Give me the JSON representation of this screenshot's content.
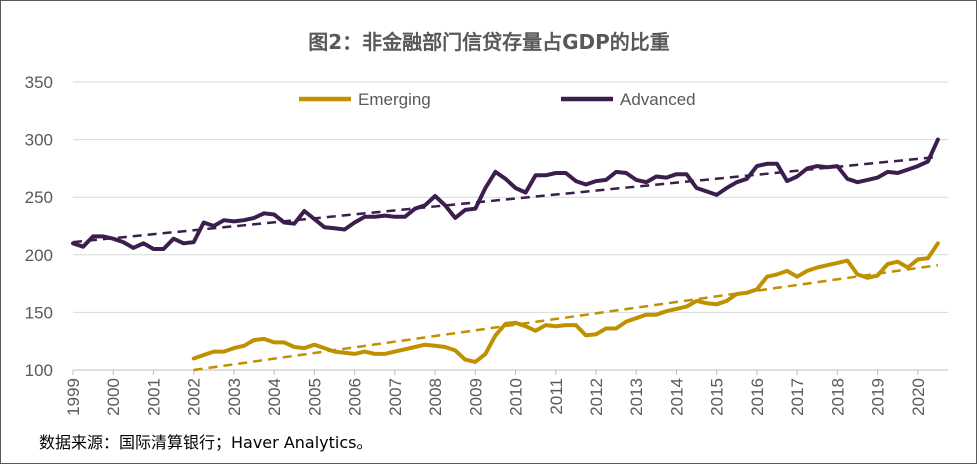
{
  "chart_data": {
    "type": "line",
    "title": "图2：非金融部门信贷存量占GDP的比重",
    "source": "数据来源：国际清算银行；Haver Analytics。",
    "xlabel": "",
    "ylabel": "",
    "xlim": [
      1999,
      2020.75
    ],
    "ylim": [
      100,
      350
    ],
    "yticks": [
      100,
      150,
      200,
      250,
      300,
      350
    ],
    "xticks": [
      "1999",
      "2000",
      "2001",
      "2002",
      "2003",
      "2004",
      "2005",
      "2006",
      "2007",
      "2008",
      "2009",
      "2010",
      "2011",
      "2012",
      "2013",
      "2014",
      "2015",
      "2016",
      "2017",
      "2018",
      "2019",
      "2020"
    ],
    "grid": true,
    "legend": "top-center",
    "series": [
      {
        "name": "Emerging",
        "color": "#BF9000",
        "x": [
          2002.0,
          2002.25,
          2002.5,
          2002.75,
          2003.0,
          2003.25,
          2003.5,
          2003.75,
          2004.0,
          2004.25,
          2004.5,
          2004.75,
          2005.0,
          2005.25,
          2005.5,
          2005.75,
          2006.0,
          2006.25,
          2006.5,
          2006.75,
          2007.0,
          2007.25,
          2007.5,
          2007.75,
          2008.0,
          2008.25,
          2008.5,
          2008.75,
          2009.0,
          2009.25,
          2009.5,
          2009.75,
          2010.0,
          2010.25,
          2010.5,
          2010.75,
          2011.0,
          2011.25,
          2011.5,
          2011.75,
          2012.0,
          2012.25,
          2012.5,
          2012.75,
          2013.0,
          2013.25,
          2013.5,
          2013.75,
          2014.0,
          2014.25,
          2014.5,
          2014.75,
          2015.0,
          2015.25,
          2015.5,
          2015.75,
          2016.0,
          2016.25,
          2016.5,
          2016.75,
          2017.0,
          2017.25,
          2017.5,
          2017.75,
          2018.0,
          2018.25,
          2018.5,
          2018.75,
          2019.0,
          2019.25,
          2019.5,
          2019.75,
          2020.0,
          2020.25,
          2020.5
        ],
        "values": [
          110,
          113,
          116,
          116,
          119,
          121,
          126,
          127,
          124,
          124,
          120,
          119,
          122,
          119,
          116,
          115,
          114,
          116,
          114,
          114,
          116,
          118,
          120,
          122,
          121,
          120,
          117,
          109,
          107,
          114,
          130,
          140,
          141,
          138,
          134,
          139,
          138,
          139,
          139,
          130,
          131,
          136,
          136,
          142,
          145,
          148,
          148,
          151,
          153,
          155,
          160,
          158,
          157,
          160,
          166,
          167,
          170,
          181,
          183,
          186,
          181,
          186,
          189,
          191,
          193,
          195,
          183,
          180,
          182,
          192,
          194,
          189,
          196,
          197,
          210
        ],
        "trend": [
          [
            2002.0,
            100
          ],
          [
            2020.5,
            191
          ]
        ]
      },
      {
        "name": "Advanced",
        "color": "#3B1D4E",
        "x": [
          1999.0,
          1999.25,
          1999.5,
          1999.75,
          2000.0,
          2000.25,
          2000.5,
          2000.75,
          2001.0,
          2001.25,
          2001.5,
          2001.75,
          2002.0,
          2002.25,
          2002.5,
          2002.75,
          2003.0,
          2003.25,
          2003.5,
          2003.75,
          2004.0,
          2004.25,
          2004.5,
          2004.75,
          2005.0,
          2005.25,
          2005.5,
          2005.75,
          2006.0,
          2006.25,
          2006.5,
          2006.75,
          2007.0,
          2007.25,
          2007.5,
          2007.75,
          2008.0,
          2008.25,
          2008.5,
          2008.75,
          2009.0,
          2009.25,
          2009.5,
          2009.75,
          2010.0,
          2010.25,
          2010.5,
          2010.75,
          2011.0,
          2011.25,
          2011.5,
          2011.75,
          2012.0,
          2012.25,
          2012.5,
          2012.75,
          2013.0,
          2013.25,
          2013.5,
          2013.75,
          2014.0,
          2014.25,
          2014.5,
          2014.75,
          2015.0,
          2015.25,
          2015.5,
          2015.75,
          2016.0,
          2016.25,
          2016.5,
          2016.75,
          2017.0,
          2017.25,
          2017.5,
          2017.75,
          2018.0,
          2018.25,
          2018.5,
          2018.75,
          2019.0,
          2019.25,
          2019.5,
          2019.75,
          2020.0,
          2020.25,
          2020.5
        ],
        "values": [
          210,
          207,
          216,
          216,
          214,
          211,
          206,
          210,
          205,
          205,
          214,
          210,
          211,
          228,
          225,
          230,
          229,
          230,
          232,
          236,
          235,
          228,
          227,
          238,
          231,
          224,
          223,
          222,
          228,
          233,
          233,
          234,
          233,
          233,
          240,
          243,
          251,
          243,
          232,
          239,
          240,
          258,
          272,
          266,
          258,
          254,
          269,
          269,
          271,
          271,
          264,
          261,
          264,
          265,
          272,
          271,
          265,
          263,
          268,
          267,
          270,
          270,
          258,
          255,
          252,
          258,
          263,
          266,
          277,
          279,
          279,
          264,
          268,
          275,
          277,
          276,
          277,
          266,
          263,
          265,
          267,
          272,
          271,
          274,
          277,
          281,
          300
        ],
        "trend": [
          [
            1999.0,
            211
          ],
          [
            2020.5,
            285
          ]
        ]
      }
    ]
  }
}
